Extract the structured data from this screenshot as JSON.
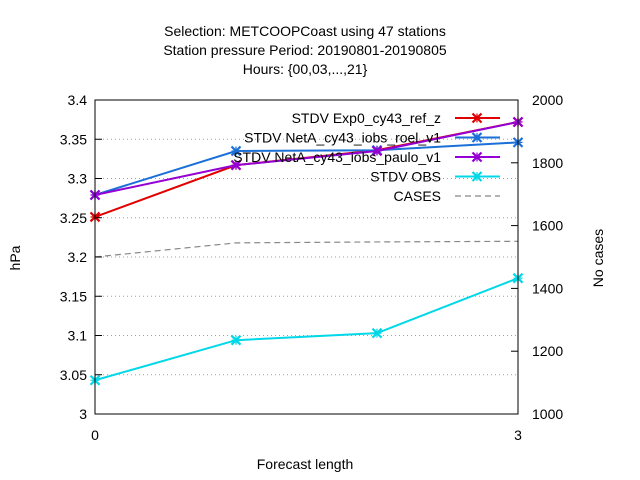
{
  "chart_data": {
    "type": "line",
    "title_lines": [
      "Selection: METCOOPCoast using    47 stations",
      "Station pressure   Period: 20190801-20190805",
      "Hours: {00,03,...,21}"
    ],
    "xlabel": "Forecast length",
    "ylabel": "hPa",
    "y2label": "No cases",
    "xlim": [
      0,
      3
    ],
    "ylim": [
      3.0,
      3.4
    ],
    "y2lim": [
      1000,
      2000
    ],
    "x_ticks": [
      "0",
      "3"
    ],
    "y_ticks": [
      "3",
      "3.05",
      "3.1",
      "3.15",
      "3.2",
      "3.25",
      "3.3",
      "3.35",
      "3.4"
    ],
    "y2_ticks": [
      "1000",
      "1200",
      "1400",
      "1600",
      "1800",
      "2000"
    ],
    "grid": true,
    "legend_position": "top-right",
    "x": [
      0,
      1,
      2,
      3
    ],
    "series": [
      {
        "name": "STDV Exp0_cy43_ref_z",
        "axis": "left",
        "color": "#e00000",
        "marker": "x",
        "values": [
          3.251,
          3.317,
          3.336,
          3.372
        ]
      },
      {
        "name": "STDV NetA_cy43_iobs_roel_v1",
        "axis": "left",
        "color": "#1a6fd8",
        "marker": "x",
        "values": [
          3.279,
          3.335,
          3.336,
          3.346
        ]
      },
      {
        "name": "STDV NetA_cy43_iobs_paulo_v1",
        "axis": "left",
        "color": "#9400d3",
        "marker": "x",
        "values": [
          3.279,
          3.317,
          3.335,
          3.372
        ]
      },
      {
        "name": "STDV OBS",
        "axis": "left",
        "color": "#00d8e8",
        "marker": "x",
        "values": [
          3.043,
          3.094,
          3.103,
          3.173
        ]
      },
      {
        "name": "CASES",
        "axis": "right",
        "color": "#888888",
        "marker": "none",
        "dashed": true,
        "values": [
          1500,
          1545,
          1548,
          1550
        ]
      }
    ]
  }
}
